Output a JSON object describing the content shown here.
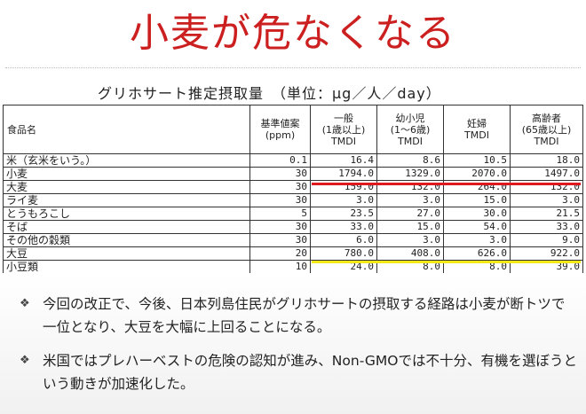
{
  "slide": {
    "title": "小麦が危なくなる"
  },
  "table": {
    "caption": "グリホサート推定摂取量　（単位：μg／人／day）",
    "headers": {
      "food": "食品名",
      "base": "基準値案\n(ppm)",
      "general": "一般\n(1歳以上)\nTMDI",
      "child": "幼小児\n(1～6歳)\nTMDI",
      "pregnant": "妊婦\nTMDI",
      "elderly": "高齢者\n(65歳以上)\nTMDI"
    },
    "rows": [
      {
        "food": "米（玄米をいう。）",
        "base": "0.1",
        "general": "16.4",
        "child": "8.6",
        "pregnant": "10.5",
        "elderly": "18.0"
      },
      {
        "food": "小麦",
        "base": "30",
        "general": "1794.0",
        "child": "1329.0",
        "pregnant": "2070.0",
        "elderly": "1497.0"
      },
      {
        "food": "大麦",
        "base": "30",
        "general": "159.0",
        "child": "132.0",
        "pregnant": "264.0",
        "elderly": "132.0"
      },
      {
        "food": "ライ麦",
        "base": "30",
        "general": "3.0",
        "child": "3.0",
        "pregnant": "15.0",
        "elderly": "3.0"
      },
      {
        "food": "とうもろこし",
        "base": "5",
        "general": "23.5",
        "child": "27.0",
        "pregnant": "30.0",
        "elderly": "21.5"
      },
      {
        "food": "そば",
        "base": "30",
        "general": "33.0",
        "child": "15.0",
        "pregnant": "54.0",
        "elderly": "33.0"
      },
      {
        "food": "その他の穀類",
        "base": "30",
        "general": "6.0",
        "child": "3.0",
        "pregnant": "3.0",
        "elderly": "9.0"
      },
      {
        "food": "大豆",
        "base": "20",
        "general": "780.0",
        "child": "408.0",
        "pregnant": "626.0",
        "elderly": "922.0"
      },
      {
        "food": "小豆類",
        "base": "10",
        "general": "24.0",
        "child": "8.0",
        "pregnant": "8.0",
        "elderly": "39.0"
      }
    ]
  },
  "highlights": {
    "wheat_color": "#e0191e",
    "soy_color": "#f3e81a"
  },
  "bullets": [
    {
      "icon": "diamond-bullet-icon",
      "text": "今回の改正で、今後、日本列島住民がグリホサートの摂取する経路は小麦が断トツで一位となり、大豆を大幅に上回ることになる。"
    },
    {
      "icon": "diamond-bullet-icon",
      "text": "米国ではプレハーベストの危険の認知が進み、Non-GMOでは不十分、有機を選ぼうという動きが加速化した。"
    }
  ]
}
